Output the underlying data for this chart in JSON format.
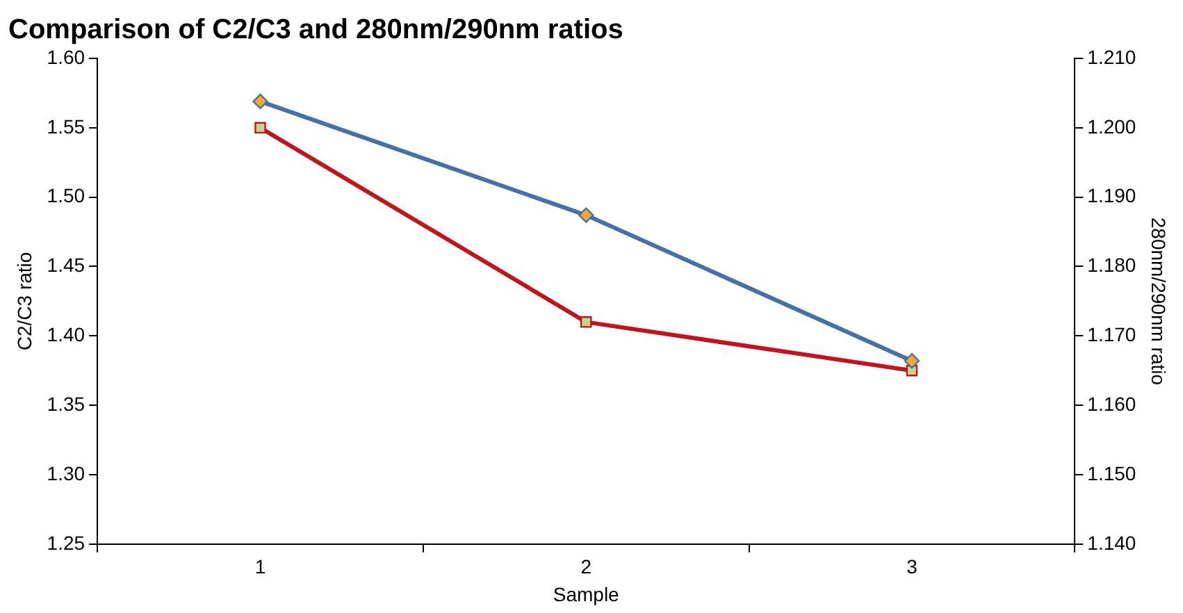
{
  "chart_data": {
    "type": "line",
    "title": "Comparison of C2/C3 and 280nm/290nm ratios",
    "xlabel": "Sample",
    "ylabel": "C2/C3 ratio",
    "y2label": "280nm/290nm ratio",
    "categories": [
      "1",
      "2",
      "3"
    ],
    "series": [
      {
        "color": "#4472a8",
        "values": [
          1.569,
          1.487,
          1.382
        ],
        "marker": "diamond"
      },
      {
        "color": "#c0141e",
        "values": [
          1.2,
          1.172,
          1.165
        ],
        "axis": "y2",
        "marker": "square"
      }
    ],
    "ylim": [
      1.25,
      1.6
    ],
    "yticks": [
      {
        "value": 1.25,
        "label": "1.25"
      },
      {
        "value": 1.3,
        "label": "1.30"
      },
      {
        "value": 1.35,
        "label": "1.35"
      },
      {
        "value": 1.4,
        "label": "1.40"
      },
      {
        "value": 1.45,
        "label": "1.45"
      },
      {
        "value": 1.5,
        "label": "1.50"
      },
      {
        "value": 1.55,
        "label": "1.55"
      },
      {
        "value": 1.6,
        "label": "1.60"
      }
    ],
    "y2lim": [
      1.14,
      1.21
    ],
    "y2ticks": [
      {
        "value": 1.14,
        "label": "1.140"
      },
      {
        "value": 1.15,
        "label": "1.150"
      },
      {
        "value": 1.16,
        "label": "1.160"
      },
      {
        "value": 1.17,
        "label": "1.170"
      },
      {
        "value": 1.18,
        "label": "1.180"
      },
      {
        "value": 1.19,
        "label": "1.190"
      },
      {
        "value": 1.2,
        "label": "1.200"
      },
      {
        "value": 1.21,
        "label": "1.210"
      }
    ],
    "grid": false,
    "legend": false,
    "line_style": "solid"
  }
}
